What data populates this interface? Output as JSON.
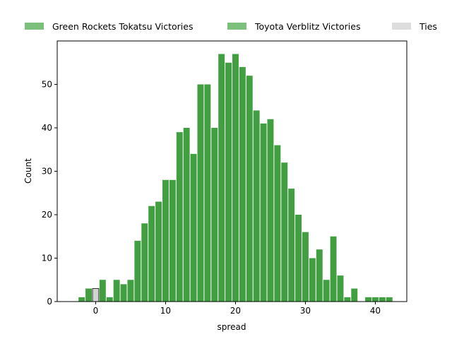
{
  "chart_data": {
    "type": "bar",
    "title": "",
    "xlabel": "spread",
    "ylabel": "Count",
    "xlim": [
      -5.5,
      44.5
    ],
    "ylim": [
      0,
      60
    ],
    "xticks": [
      0,
      10,
      20,
      30,
      40
    ],
    "yticks": [
      0,
      10,
      20,
      30,
      40,
      50
    ],
    "grid": false,
    "legend": {
      "placement": "top",
      "entries": [
        {
          "name": "Green Rockets Tokatsu Victories",
          "color": "#7bc17b"
        },
        {
          "name": "Toyota Verblitz Victories",
          "color": "#7bc17b"
        },
        {
          "name": "Ties",
          "color": "#dddddd"
        }
      ]
    },
    "series": [
      {
        "name": "Green Rockets Tokatsu Victories",
        "color": "#419e41",
        "x": [],
        "values": []
      },
      {
        "name": "Toyota Verblitz Victories",
        "color": "#419e41",
        "x": [
          -2,
          -1,
          1,
          2,
          3,
          4,
          5,
          6,
          7,
          8,
          9,
          10,
          11,
          12,
          13,
          14,
          15,
          16,
          17,
          18,
          19,
          20,
          21,
          22,
          23,
          24,
          25,
          26,
          27,
          28,
          29,
          30,
          31,
          32,
          33,
          34,
          35,
          36,
          37,
          39,
          40,
          41,
          42
        ],
        "values": [
          1,
          3,
          5,
          1,
          5,
          4,
          5,
          14,
          18,
          22,
          23,
          28,
          28,
          39,
          40,
          34,
          50,
          50,
          40,
          57,
          55,
          57,
          54,
          52,
          44,
          41,
          42,
          36,
          32,
          26,
          20,
          16,
          10,
          12,
          5,
          15,
          6,
          1,
          3,
          1,
          1,
          1,
          1
        ]
      },
      {
        "name": "Ties",
        "color": "#d3d3d3",
        "x": [
          0
        ],
        "values": [
          3
        ]
      }
    ]
  }
}
